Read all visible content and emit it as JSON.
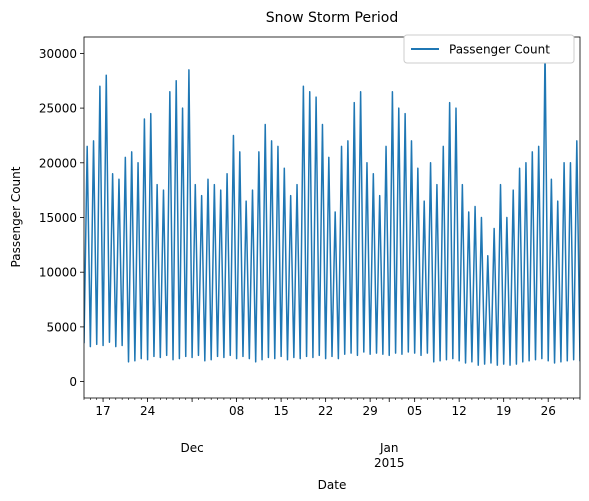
{
  "chart_data": {
    "type": "line",
    "title": "Snow Storm Period",
    "xlabel": "Date",
    "ylabel": "Passenger Count",
    "x_start": "2014-11-14",
    "x_end": "2015-01-31",
    "ylim": [
      -1500,
      31500
    ],
    "grid": false,
    "legend_position": "top-right",
    "yticks": [
      0,
      5000,
      10000,
      15000,
      20000,
      25000,
      30000
    ],
    "xticks_major": [
      {
        "date": "2014-11-17",
        "label": "17"
      },
      {
        "date": "2014-11-24",
        "label": "24"
      },
      {
        "date": "2014-12-08",
        "label": "08"
      },
      {
        "date": "2014-12-15",
        "label": "15"
      },
      {
        "date": "2014-12-22",
        "label": "22"
      },
      {
        "date": "2014-12-29",
        "label": "29"
      },
      {
        "date": "2015-01-05",
        "label": "05"
      },
      {
        "date": "2015-01-12",
        "label": "12"
      },
      {
        "date": "2015-01-19",
        "label": "19"
      },
      {
        "date": "2015-01-26",
        "label": "26"
      }
    ],
    "xticks_period": [
      {
        "date": "2014-12-01",
        "label": "Dec",
        "sublabel": ""
      },
      {
        "date": "2015-01-01",
        "label": "Jan",
        "sublabel": "2015"
      }
    ],
    "series": [
      {
        "name": "Passenger Count",
        "color": "#1f77b4",
        "interval_hours": 12,
        "values": [
          3500,
          21500,
          3200,
          22000,
          3400,
          27000,
          3300,
          28000,
          3600,
          19000,
          3200,
          18500,
          3300,
          20500,
          1800,
          21000,
          1900,
          20000,
          2100,
          24000,
          2000,
          24500,
          2300,
          18000,
          2200,
          17500,
          2400,
          26500,
          2000,
          27500,
          2100,
          25000,
          2300,
          28500,
          2200,
          18000,
          2400,
          17000,
          1900,
          18500,
          2000,
          18000,
          2300,
          17500,
          2200,
          19000,
          2400,
          22500,
          2100,
          21000,
          2300,
          16500,
          2100,
          17500,
          1800,
          21000,
          2000,
          23500,
          2200,
          22000,
          2100,
          21500,
          2300,
          19500,
          2000,
          17000,
          2200,
          18000,
          2100,
          27000,
          2300,
          26500,
          2200,
          26000,
          2400,
          23500,
          2100,
          20500,
          2300,
          15500,
          2100,
          21500,
          2500,
          22000,
          2600,
          25500,
          2400,
          26500,
          2700,
          20000,
          2500,
          19000,
          2600,
          17000,
          2500,
          21500,
          2400,
          26500,
          2600,
          25000,
          2500,
          24500,
          2700,
          22000,
          2600,
          19500,
          2400,
          16500,
          2600,
          20000,
          1800,
          18000,
          1900,
          21500,
          2000,
          25500,
          2100,
          25000,
          1900,
          18000,
          1700,
          15500,
          1800,
          16000,
          1500,
          15000,
          1600,
          11500,
          1700,
          14000,
          1500,
          18000,
          1600,
          15000,
          1500,
          17500,
          1600,
          19500,
          1800,
          20000,
          1900,
          21000,
          2000,
          21500,
          2100,
          30500,
          1900,
          18500,
          1700,
          16500,
          1800,
          20000,
          1900,
          20000,
          2000,
          22000,
          1900,
          24000,
          2100,
          25000,
          1800,
          22000,
          1700,
          19000,
          1800,
          17000,
          2000,
          22000,
          2100,
          25500,
          2000,
          25000,
          2200,
          26500,
          2100,
          22500,
          1900,
          18000,
          2000,
          17500,
          2200,
          23000,
          2300,
          26000,
          2200,
          24000,
          2400,
          26500,
          2100,
          21500,
          2000,
          19000,
          2200,
          18500,
          2400,
          25500,
          2300,
          22000,
          2500,
          26000,
          2400,
          27500,
          2200,
          21000,
          2100,
          18500,
          2300,
          19500,
          2000,
          20000,
          2200,
          16000,
          1000,
          9000,
          0,
          12500,
          3000,
          16000,
          2600,
          18500,
          2400,
          19000,
          2600,
          27500,
          2800,
          28500,
          2700,
          24000,
          2900,
          29000,
          2700
        ]
      }
    ]
  }
}
